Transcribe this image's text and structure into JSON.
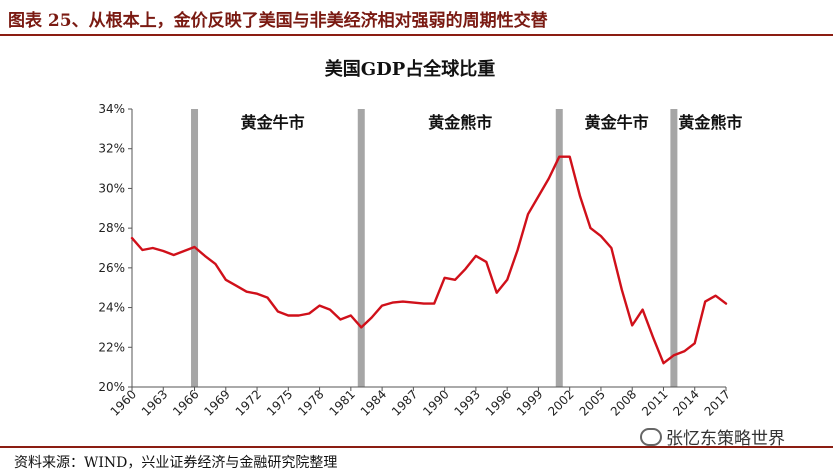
{
  "figure": {
    "title": "图表 25、从根本上，金价反映了美国与非美经济相对强弱的周期性交替",
    "source": "资料来源：WIND，兴业证券经济与金融研究院整理",
    "watermark": "张忆东策略世界"
  },
  "chart_data": {
    "type": "line",
    "title": "美国GDP占全球比重",
    "xlabel": "",
    "ylabel": "",
    "x": [
      1960,
      1961,
      1962,
      1963,
      1964,
      1965,
      1966,
      1967,
      1968,
      1969,
      1970,
      1971,
      1972,
      1973,
      1974,
      1975,
      1976,
      1977,
      1978,
      1979,
      1980,
      1981,
      1982,
      1983,
      1984,
      1985,
      1986,
      1987,
      1988,
      1989,
      1990,
      1991,
      1992,
      1993,
      1994,
      1995,
      1996,
      1997,
      1998,
      1999,
      2000,
      2001,
      2002,
      2003,
      2004,
      2005,
      2006,
      2007,
      2008,
      2009,
      2010,
      2011,
      2012,
      2013,
      2014,
      2015,
      2016,
      2017
    ],
    "x_ticks": [
      "1960",
      "1963",
      "1966",
      "1969",
      "1972",
      "1975",
      "1978",
      "1981",
      "1984",
      "1987",
      "1990",
      "1993",
      "1996",
      "1999",
      "2002",
      "2005",
      "2008",
      "2011",
      "2014",
      "2017"
    ],
    "series": [
      {
        "values": [
          27.5,
          26.9,
          27.0,
          26.85,
          26.65,
          26.85,
          27.05,
          26.6,
          26.2,
          25.4,
          25.1,
          24.8,
          24.7,
          24.5,
          23.8,
          23.6,
          23.6,
          23.7,
          24.1,
          23.9,
          23.4,
          23.6,
          23.0,
          23.5,
          24.1,
          24.25,
          24.3,
          24.25,
          24.2,
          24.2,
          25.5,
          25.4,
          25.95,
          26.6,
          26.3,
          24.75,
          25.4,
          26.9,
          28.7,
          29.6,
          30.5,
          31.6,
          31.6,
          29.6,
          28.0,
          27.6,
          27.0,
          24.9,
          23.1,
          23.9,
          22.5,
          21.2,
          21.6,
          21.8,
          22.2,
          24.3,
          24.6,
          24.2
        ],
        "color": "#d0101a"
      }
    ],
    "y_ticks": [
      "20%",
      "22%",
      "24%",
      "26%",
      "28%",
      "30%",
      "32%",
      "34%"
    ],
    "ylim": [
      20,
      34
    ],
    "xlim": [
      1960,
      2017
    ],
    "phase_markers": [
      1966,
      1982,
      2001,
      2012
    ],
    "phase_marker_color": "#a6a6a6",
    "phase_labels": [
      {
        "text": "黄金牛市",
        "year": 1973.5
      },
      {
        "text": "黄金熊市",
        "year": 1991.5
      },
      {
        "text": "黄金牛市",
        "year": 2006.5
      },
      {
        "text": "黄金熊市",
        "year": 2015.5
      }
    ],
    "grid": false,
    "legend": "none"
  }
}
